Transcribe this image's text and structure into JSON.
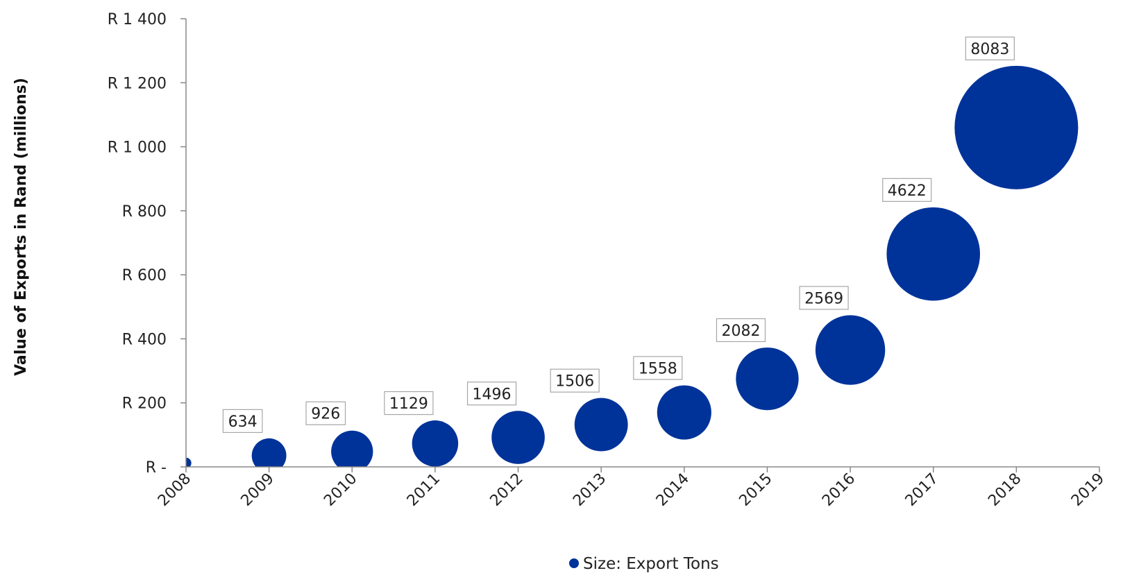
{
  "chart_data": {
    "type": "scatter",
    "subtype": "bubble",
    "title": "",
    "xlabel": "",
    "ylabel": "Value of Exports in Rand (millions)",
    "xlim": [
      2008,
      2019
    ],
    "ylim": [
      0,
      1400
    ],
    "x_ticks": [
      "2008",
      "2009",
      "2010",
      "2011",
      "2012",
      "2013",
      "2014",
      "2015",
      "2016",
      "2017",
      "2018",
      "2019"
    ],
    "y_ticks": [
      {
        "value": 0,
        "label": "R -"
      },
      {
        "value": 200,
        "label": "R 200"
      },
      {
        "value": 400,
        "label": "R 400"
      },
      {
        "value": 600,
        "label": "R 600"
      },
      {
        "value": 800,
        "label": "R 800"
      },
      {
        "value": 1000,
        "label": "R 1 000"
      },
      {
        "value": 1200,
        "label": "R 1 200"
      },
      {
        "value": 1400,
        "label": "R 1 400"
      }
    ],
    "grid": false,
    "legend": {
      "position": "bottom",
      "label": "Size: Export Tons"
    },
    "series": [
      {
        "name": "Size: Export Tons",
        "color": "#003399",
        "points": [
          {
            "x": 2008,
            "y": 12,
            "size": 60,
            "label": ""
          },
          {
            "x": 2009,
            "y": 35,
            "size": 634,
            "label": "634"
          },
          {
            "x": 2010,
            "y": 48,
            "size": 926,
            "label": "926"
          },
          {
            "x": 2011,
            "y": 73,
            "size": 1129,
            "label": "1129"
          },
          {
            "x": 2012,
            "y": 92,
            "size": 1496,
            "label": "1496"
          },
          {
            "x": 2013,
            "y": 132,
            "size": 1506,
            "label": "1506"
          },
          {
            "x": 2014,
            "y": 170,
            "size": 1558,
            "label": "1558"
          },
          {
            "x": 2015,
            "y": 275,
            "size": 2082,
            "label": "2082"
          },
          {
            "x": 2016,
            "y": 365,
            "size": 2569,
            "label": "2569"
          },
          {
            "x": 2017,
            "y": 665,
            "size": 4622,
            "label": "4622"
          },
          {
            "x": 2018,
            "y": 1060,
            "size": 8083,
            "label": "8083"
          }
        ]
      }
    ]
  }
}
